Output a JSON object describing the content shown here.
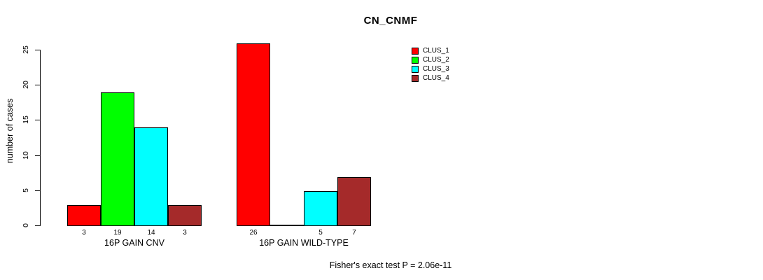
{
  "chart_data": {
    "type": "bar",
    "title": "CN_CNMF",
    "categories": [
      "16P GAIN CNV",
      "16P GAIN WILD-TYPE"
    ],
    "series": [
      {
        "name": "CLUS_1",
        "color": "#ff0000",
        "values": [
          3,
          26
        ]
      },
      {
        "name": "CLUS_2",
        "color": "#00ff00",
        "values": [
          19,
          0
        ]
      },
      {
        "name": "CLUS_3",
        "color": "#00ffff",
        "values": [
          14,
          5
        ]
      },
      {
        "name": "CLUS_4",
        "color": "#a52a2a",
        "values": [
          3,
          7
        ]
      }
    ],
    "xlabel": "",
    "ylabel": "number of cases",
    "ylim": [
      0,
      25
    ],
    "yticks": [
      0,
      5,
      10,
      15,
      20,
      25
    ],
    "grid": false,
    "legend_position": "top-right",
    "legend_labels": [
      "CLUS_1",
      "CLUS_2",
      "CLUS_3",
      "CLUS_4"
    ],
    "bar_value_labels_shown": true,
    "zero_value_labels_hidden": true,
    "axis_color": "#000000",
    "bar_border_color": "#000000",
    "annotation": "Fisher's exact test P = 2.06e-11"
  }
}
